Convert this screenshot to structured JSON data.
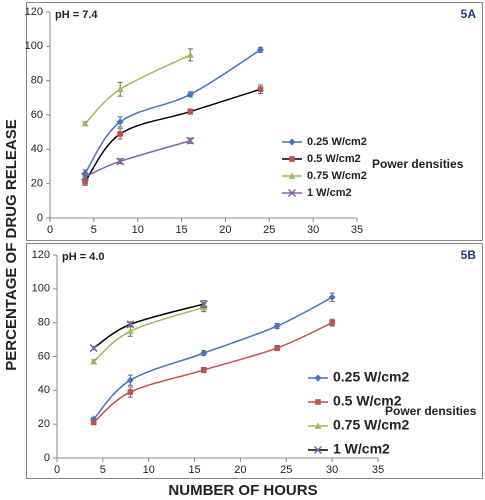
{
  "chart_data": [
    {
      "type": "line",
      "subtitle": "pH = 7.4",
      "panel_label": "5A",
      "legend_title": "Power densities",
      "ylabel": "PERCENTAGE OF DRUG RELEASE",
      "xlim": [
        0,
        35
      ],
      "xticks": [
        0,
        5,
        10,
        15,
        20,
        25,
        30,
        35
      ],
      "ylim": [
        0,
        120
      ],
      "yticks": [
        0,
        20,
        40,
        60,
        80,
        100,
        120
      ],
      "legend": "right",
      "grid": false,
      "series": [
        {
          "name": "0.25 W/cm2",
          "color": "#4472c4",
          "line_color": "#4472c4",
          "marker": "diamond",
          "x": [
            4,
            8,
            16,
            24
          ],
          "values": [
            26,
            56,
            72,
            98
          ],
          "errors": [
            2,
            3,
            1.5,
            1.5
          ]
        },
        {
          "name": "0.5 W/cm2",
          "color": "#c0504d",
          "line_color": "#000000",
          "marker": "square",
          "x": [
            4,
            8,
            16,
            24
          ],
          "values": [
            21,
            49,
            62,
            75
          ],
          "errors": [
            2,
            3,
            1.5,
            2.5
          ]
        },
        {
          "name": "0.75 W/cm2",
          "color": "#9bbb59",
          "line_color": "#9bbb59",
          "marker": "triangle",
          "x": [
            4,
            8,
            16
          ],
          "values": [
            55,
            75,
            95
          ],
          "errors": [
            1,
            4,
            3.5
          ]
        },
        {
          "name": "1 W/cm2",
          "color": "#8064a2",
          "line_color": "#8064a2",
          "marker": "x",
          "x": [
            4,
            8,
            16
          ],
          "values": [
            24,
            33,
            45
          ],
          "errors": [
            1.5,
            1.5,
            1.5
          ]
        }
      ]
    },
    {
      "type": "line",
      "subtitle": "pH = 4.0",
      "panel_label": "5B",
      "legend_title": "Power densities",
      "xlabel": "NUMBER OF HOURS",
      "xlim": [
        0,
        35
      ],
      "xticks": [
        0,
        5,
        10,
        15,
        20,
        25,
        30,
        35
      ],
      "ylim": [
        0,
        120
      ],
      "yticks": [
        0,
        20,
        40,
        60,
        80,
        100,
        120
      ],
      "legend": "right",
      "grid": false,
      "series": [
        {
          "name": "0.25 W/cm2",
          "color": "#4472c4",
          "line_color": "#4472c4",
          "marker": "diamond",
          "x": [
            4,
            8,
            16,
            24,
            30
          ],
          "values": [
            23,
            46,
            62,
            78,
            95
          ],
          "errors": [
            1,
            3,
            1.5,
            1.5,
            2.5
          ]
        },
        {
          "name": "0.5 W/cm2",
          "color": "#c0504d",
          "line_color": "#c0504d",
          "marker": "square",
          "x": [
            4,
            8,
            16,
            24,
            30
          ],
          "values": [
            21,
            39,
            52,
            65,
            80
          ],
          "errors": [
            1,
            3,
            1.5,
            1.5,
            2
          ]
        },
        {
          "name": "0.75 W/cm2",
          "color": "#9bbb59",
          "line_color": "#9bbb59",
          "marker": "triangle",
          "x": [
            4,
            8,
            16
          ],
          "values": [
            57,
            75,
            89
          ],
          "errors": [
            1,
            3,
            2.5
          ]
        },
        {
          "name": "1 W/cm2",
          "color": "#8064a2",
          "line_color": "#000000",
          "marker": "x",
          "x": [
            4,
            8,
            16
          ],
          "values": [
            65,
            79,
            91
          ],
          "errors": [
            1,
            1.5,
            2
          ]
        }
      ]
    }
  ]
}
